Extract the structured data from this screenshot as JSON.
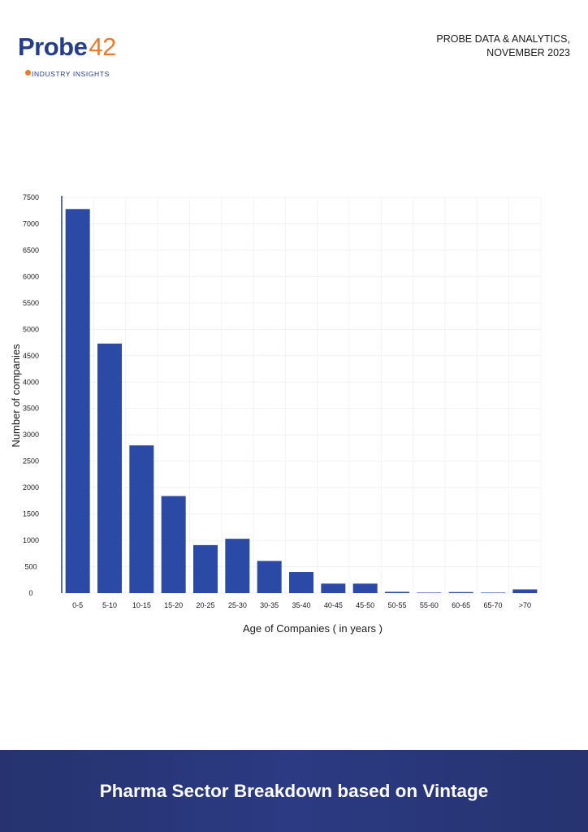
{
  "brand": {
    "logo_text": "Probe",
    "logo_number": "42",
    "tagline": "INDUSTRY INSIGHTS"
  },
  "header": {
    "line1": "PROBE DATA & ANALYTICS,",
    "line2": "NOVEMBER 2023"
  },
  "footer": {
    "title": "Pharma Sector Breakdown based on Vintage"
  },
  "colors": {
    "bar": "#2a4aa6",
    "axis": "#243d8a",
    "footer_bg": "#263370",
    "logo_blue": "#243d8a",
    "logo_orange": "#e97b2d"
  },
  "chart_data": {
    "type": "bar",
    "categories": [
      "0-5",
      "5-10",
      "10-15",
      "15-20",
      "20-25",
      "25-30",
      "30-35",
      "35-40",
      "40-45",
      "45-50",
      "50-55",
      "55-60",
      "60-65",
      "65-70",
      ">70"
    ],
    "values": [
      7280,
      4730,
      2800,
      1840,
      910,
      1030,
      610,
      400,
      180,
      180,
      25,
      10,
      20,
      10,
      70
    ],
    "xlabel": "Age of Companies ( in years )",
    "ylabel": "Number of companies",
    "ylim": [
      0,
      7500
    ],
    "yticks": [
      0,
      500,
      1000,
      1500,
      2000,
      2500,
      3000,
      3500,
      4000,
      4500,
      5000,
      5500,
      6000,
      6500,
      7000,
      7500
    ],
    "grid": true
  }
}
